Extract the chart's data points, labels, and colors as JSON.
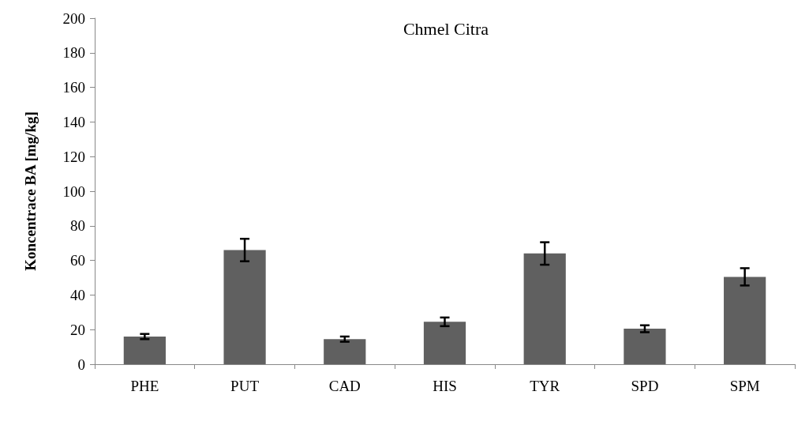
{
  "chart_data": {
    "type": "bar",
    "title": "Chmel Citra",
    "ylabel": "Koncentrace BA [mg/kg]",
    "categories": [
      "PHE",
      "PUT",
      "CAD",
      "HIS",
      "TYR",
      "SPD",
      "SPM"
    ],
    "values": [
      16,
      66,
      14.5,
      24.5,
      64,
      20.5,
      50.5
    ],
    "errors": [
      1.5,
      6.5,
      1.5,
      2.5,
      6.5,
      2,
      5
    ],
    "color": "#606060",
    "ylim": [
      0,
      200
    ],
    "yticks": [
      0,
      20,
      40,
      60,
      80,
      100,
      120,
      140,
      160,
      180,
      200
    ],
    "grid": false
  }
}
